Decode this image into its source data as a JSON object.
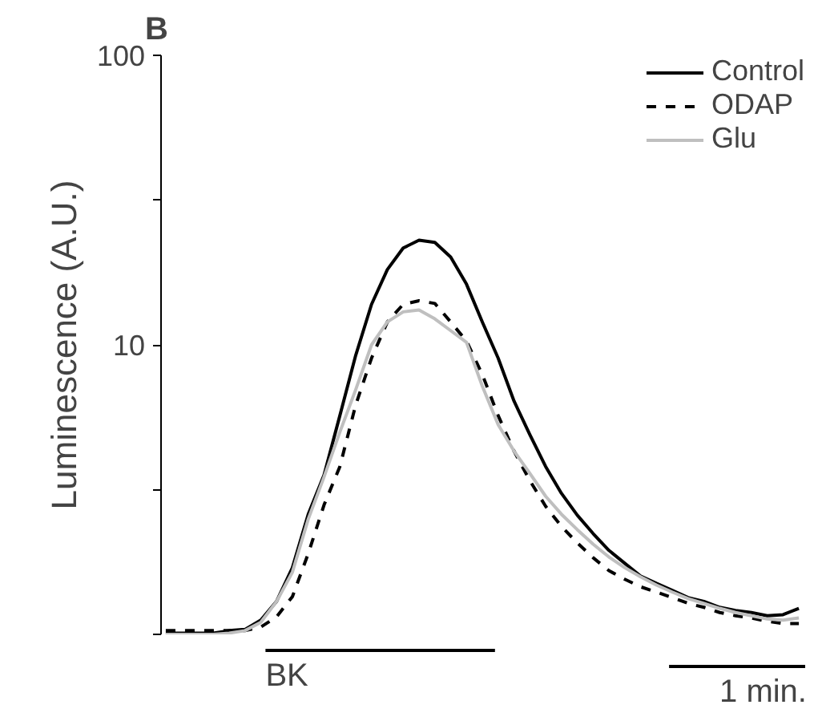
{
  "chart_data": {
    "type": "line",
    "title": "B",
    "ylabel": "Luminescence (A.U.)",
    "log": "y",
    "categories": [
      null,
      null,
      null,
      null,
      null,
      null,
      null,
      null,
      null,
      null,
      null,
      null,
      null,
      null,
      null,
      null,
      null,
      null,
      null,
      null,
      null,
      null,
      null,
      null,
      null,
      null,
      null,
      null,
      null,
      null,
      null,
      null,
      null,
      null,
      null,
      null,
      null,
      null,
      null,
      null,
      null
    ],
    "series": [
      {
        "name": "Control",
        "color": "#000000",
        "line_style": "solid",
        "values": [
          1.01,
          1.01,
          1.01,
          1.01,
          1.03,
          1.04,
          1.12,
          1.3,
          1.7,
          2.6,
          3.55,
          5.7,
          9.2,
          13.8,
          18.2,
          21.6,
          23,
          22.6,
          20.1,
          16.2,
          12,
          9,
          6.4,
          4.9,
          3.8,
          3.07,
          2.58,
          2.23,
          1.95,
          1.76,
          1.59,
          1.5,
          1.42,
          1.34,
          1.3,
          1.24,
          1.21,
          1.19,
          1.16,
          1.17,
          1.23
        ]
      },
      {
        "name": "ODAP",
        "color": "#000000",
        "line_style": "dashed",
        "values": [
          1.03,
          1.03,
          1.03,
          1.03,
          1.03,
          1.03,
          1.06,
          1.15,
          1.35,
          1.9,
          2.8,
          3.8,
          6.2,
          9,
          12,
          13.8,
          14.2,
          13.9,
          12,
          10.3,
          7.9,
          5.7,
          4.3,
          3.4,
          2.77,
          2.36,
          2.07,
          1.84,
          1.66,
          1.55,
          1.46,
          1.4,
          1.34,
          1.28,
          1.24,
          1.19,
          1.16,
          1.14,
          1.11,
          1.09,
          1.09
        ]
      },
      {
        "name": "Glu",
        "color": "#bfbfbf",
        "line_style": "solid",
        "values": [
          1.0,
          1.0,
          1.0,
          1.0,
          1.01,
          1.03,
          1.1,
          1.3,
          1.64,
          2.5,
          3.5,
          5,
          7,
          10,
          12,
          13,
          13.2,
          12.3,
          11.2,
          10.2,
          7.2,
          5.3,
          4.3,
          3.6,
          3,
          2.6,
          2.3,
          2.05,
          1.85,
          1.7,
          1.58,
          1.48,
          1.4,
          1.33,
          1.28,
          1.23,
          1.19,
          1.16,
          1.13,
          1.12,
          1.14
        ]
      }
    ],
    "ylim": [
      1,
      100
    ],
    "yticks": [
      {
        "value": 1,
        "label": null
      },
      {
        "value": 3.16,
        "label": null
      },
      10,
      {
        "value": 31.6,
        "label": null
      },
      100
    ],
    "tick_labels": "y",
    "grid": false,
    "legend": "top right",
    "marker": "none",
    "annotations": [
      "BK",
      "1 min."
    ]
  }
}
